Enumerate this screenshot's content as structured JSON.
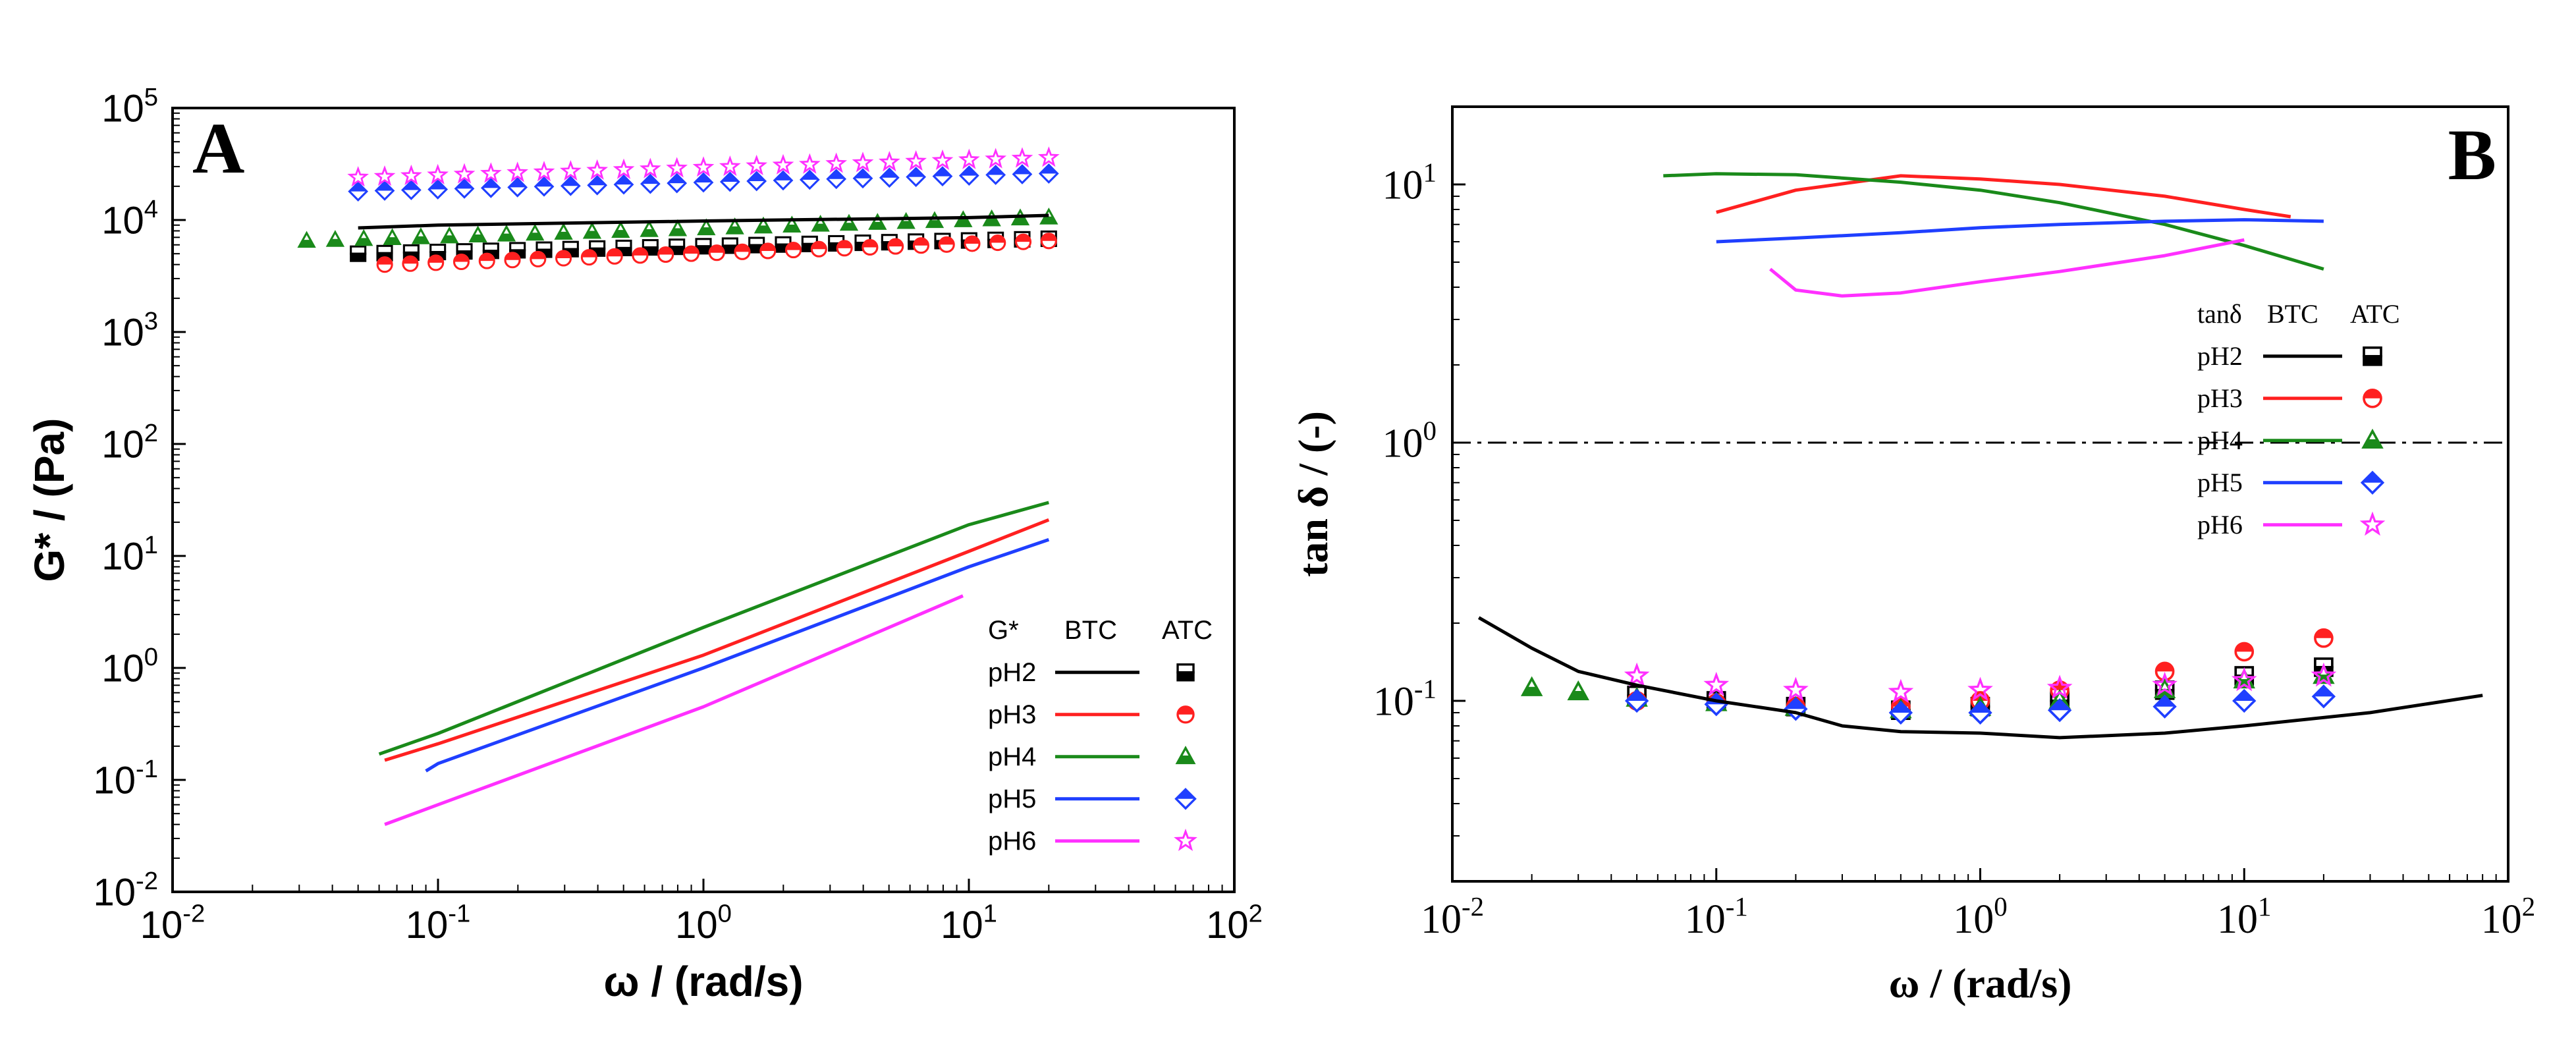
{
  "chart_data": [
    {
      "id": "A",
      "type": "line",
      "panel_label": "A",
      "scale": "log-log",
      "xlabel": "ω / (rad/s)",
      "ylabel": "G* / (Pa)",
      "xlim": [
        0.01,
        100
      ],
      "ylim": [
        0.01,
        100000
      ],
      "x_ticks": [
        {
          "value": 0.01,
          "base": "10",
          "exp": "-2"
        },
        {
          "value": 0.1,
          "base": "10",
          "exp": "-1"
        },
        {
          "value": 1,
          "base": "10",
          "exp": "0"
        },
        {
          "value": 10,
          "base": "10",
          "exp": "1"
        },
        {
          "value": 100,
          "base": "10",
          "exp": "2"
        }
      ],
      "y_ticks": [
        {
          "value": 0.01,
          "base": "10",
          "exp": "-2"
        },
        {
          "value": 0.1,
          "base": "10",
          "exp": "-1"
        },
        {
          "value": 1,
          "base": "10",
          "exp": "0"
        },
        {
          "value": 10,
          "base": "10",
          "exp": "1"
        },
        {
          "value": 100,
          "base": "10",
          "exp": "2"
        },
        {
          "value": 1000,
          "base": "10",
          "exp": "3"
        },
        {
          "value": 10000,
          "base": "10",
          "exp": "4"
        },
        {
          "value": 100000,
          "base": "10",
          "exp": "5"
        }
      ],
      "legend": {
        "header": "G*",
        "col_line": "BTC",
        "col_marker": "ATC",
        "placement": "bottom-right"
      },
      "series": [
        {
          "name": "pH2",
          "color": "#000000",
          "marker": "square-half",
          "line": {
            "x": [
              0.05,
              0.1,
              1,
              10,
              20
            ],
            "y": [
              8500,
              9000,
              9800,
              10500,
              11000
            ]
          },
          "points": {
            "x_range": [
              0.05,
              20
            ],
            "y_range": [
              5000,
              6800
            ]
          }
        },
        {
          "name": "pH3",
          "color": "#ff2020",
          "marker": "circle-half",
          "line": {
            "x": [
              0.063,
              0.1,
              1,
              10,
              20
            ],
            "y": [
              0.15,
              0.21,
              1.3,
              11,
              21
            ]
          },
          "points": {
            "x_range": [
              0.063,
              20
            ],
            "y_range": [
              4000,
              6500
            ]
          }
        },
        {
          "name": "pH4",
          "color": "#1a8a1a",
          "marker": "triangle",
          "line": {
            "x": [
              0.06,
              0.1,
              1,
              10,
              20
            ],
            "y": [
              0.17,
              0.26,
              2.3,
              19,
              30
            ]
          },
          "points": {
            "x_range": [
              0.032,
              20
            ],
            "y_range": [
              6500,
              10500
            ]
          }
        },
        {
          "name": "pH5",
          "color": "#1f3fff",
          "marker": "diamond-half",
          "line": {
            "x": [
              0.09,
              0.1,
              1,
              10,
              20
            ],
            "y": [
              0.12,
              0.14,
              1.0,
              8,
              14
            ]
          },
          "points": {
            "x_range": [
              0.05,
              20
            ],
            "y_range": [
              18000,
              26000
            ]
          }
        },
        {
          "name": "pH6",
          "color": "#ff30ff",
          "marker": "star",
          "line": {
            "x": [
              0.063,
              0.1,
              1,
              9.5
            ],
            "y": [
              0.04,
              0.06,
              0.45,
              4.4
            ]
          },
          "points": {
            "x_range": [
              0.05,
              20
            ],
            "y_range": [
              24000,
              36000
            ]
          }
        }
      ]
    },
    {
      "id": "B",
      "type": "line",
      "panel_label": "B",
      "scale": "log-log",
      "xlabel": "ω / (rad/s)",
      "ylabel": "tan δ / (-)",
      "xlim": [
        0.01,
        100
      ],
      "ylim": [
        0.02,
        20
      ],
      "reference_line": {
        "y": 1,
        "style": "dash-dot"
      },
      "x_ticks": [
        {
          "value": 0.01,
          "base": "10",
          "exp": "-2"
        },
        {
          "value": 0.1,
          "base": "10",
          "exp": "-1"
        },
        {
          "value": 1,
          "base": "10",
          "exp": "0"
        },
        {
          "value": 10,
          "base": "10",
          "exp": "1"
        },
        {
          "value": 100,
          "base": "10",
          "exp": "2"
        }
      ],
      "y_ticks": [
        {
          "value": 0.1,
          "base": "10",
          "exp": "-1"
        },
        {
          "value": 1,
          "base": "10",
          "exp": "0"
        },
        {
          "value": 10,
          "base": "10",
          "exp": "1"
        }
      ],
      "legend": {
        "header": "tanδ",
        "col_line": "BTC",
        "col_marker": "ATC",
        "placement": "right"
      },
      "series": [
        {
          "name": "pH2",
          "color": "#000000",
          "marker": "square-half",
          "line": {
            "x": [
              0.0126,
              0.02,
              0.03,
              0.05,
              0.1,
              0.2,
              0.3,
              0.5,
              1,
              2,
              5,
              10,
              30,
              80
            ],
            "y": [
              0.21,
              0.16,
              0.13,
              0.115,
              0.1,
              0.09,
              0.08,
              0.076,
              0.075,
              0.072,
              0.075,
              0.08,
              0.09,
              0.105
            ]
          },
          "points": {
            "x": [
              0.05,
              0.1,
              0.2,
              0.5,
              1,
              2,
              5,
              10,
              20
            ],
            "y": [
              0.105,
              0.1,
              0.095,
              0.092,
              0.095,
              0.1,
              0.11,
              0.125,
              0.135
            ]
          }
        },
        {
          "name": "pH3",
          "color": "#ff2020",
          "marker": "circle-half",
          "line": {
            "x": [
              0.1,
              0.2,
              0.5,
              1,
              2,
              5,
              10,
              15
            ],
            "y": [
              7.8,
              9.5,
              10.8,
              10.5,
              10,
              9,
              8,
              7.5
            ]
          },
          "points": {
            "x": [
              0.05,
              0.1,
              0.2,
              0.5,
              1,
              2,
              5,
              10,
              20
            ],
            "y": [
              0.1,
              0.098,
              0.095,
              0.095,
              0.1,
              0.11,
              0.13,
              0.155,
              0.175
            ]
          }
        },
        {
          "name": "pH4",
          "color": "#1a8a1a",
          "marker": "triangle",
          "line": {
            "x": [
              0.063,
              0.1,
              0.2,
              0.5,
              1,
              2,
              5,
              10,
              20
            ],
            "y": [
              10.8,
              11,
              10.9,
              10.2,
              9.5,
              8.5,
              7,
              5.8,
              4.7
            ]
          },
          "points": {
            "x": [
              0.02,
              0.03,
              0.05,
              0.1,
              0.2,
              0.5,
              1,
              2,
              5,
              10,
              20
            ],
            "y": [
              0.112,
              0.108,
              0.102,
              0.098,
              0.094,
              0.092,
              0.094,
              0.1,
              0.11,
              0.12,
              0.125
            ]
          }
        },
        {
          "name": "pH5",
          "color": "#1f3fff",
          "marker": "diamond-half",
          "line": {
            "x": [
              0.1,
              0.2,
              0.5,
              1,
              2,
              5,
              10,
              20
            ],
            "y": [
              6.0,
              6.2,
              6.5,
              6.8,
              7,
              7.2,
              7.3,
              7.2
            ]
          },
          "points": {
            "x": [
              0.05,
              0.1,
              0.2,
              0.5,
              1,
              2,
              5,
              10,
              20
            ],
            "y": [
              0.1,
              0.097,
              0.093,
              0.09,
              0.09,
              0.092,
              0.095,
              0.1,
              0.104
            ]
          }
        },
        {
          "name": "pH6",
          "color": "#ff30ff",
          "marker": "star",
          "line": {
            "x": [
              0.16,
              0.2,
              0.3,
              0.5,
              1,
              2,
              5,
              10
            ],
            "y": [
              4.7,
              3.9,
              3.7,
              3.8,
              4.2,
              4.6,
              5.3,
              6.1
            ]
          },
          "points": {
            "x": [
              0.05,
              0.1,
              0.2,
              0.5,
              1,
              2,
              5,
              10,
              20
            ],
            "y": [
              0.125,
              0.115,
              0.11,
              0.108,
              0.11,
              0.112,
              0.115,
              0.12,
              0.125
            ]
          }
        }
      ]
    }
  ]
}
